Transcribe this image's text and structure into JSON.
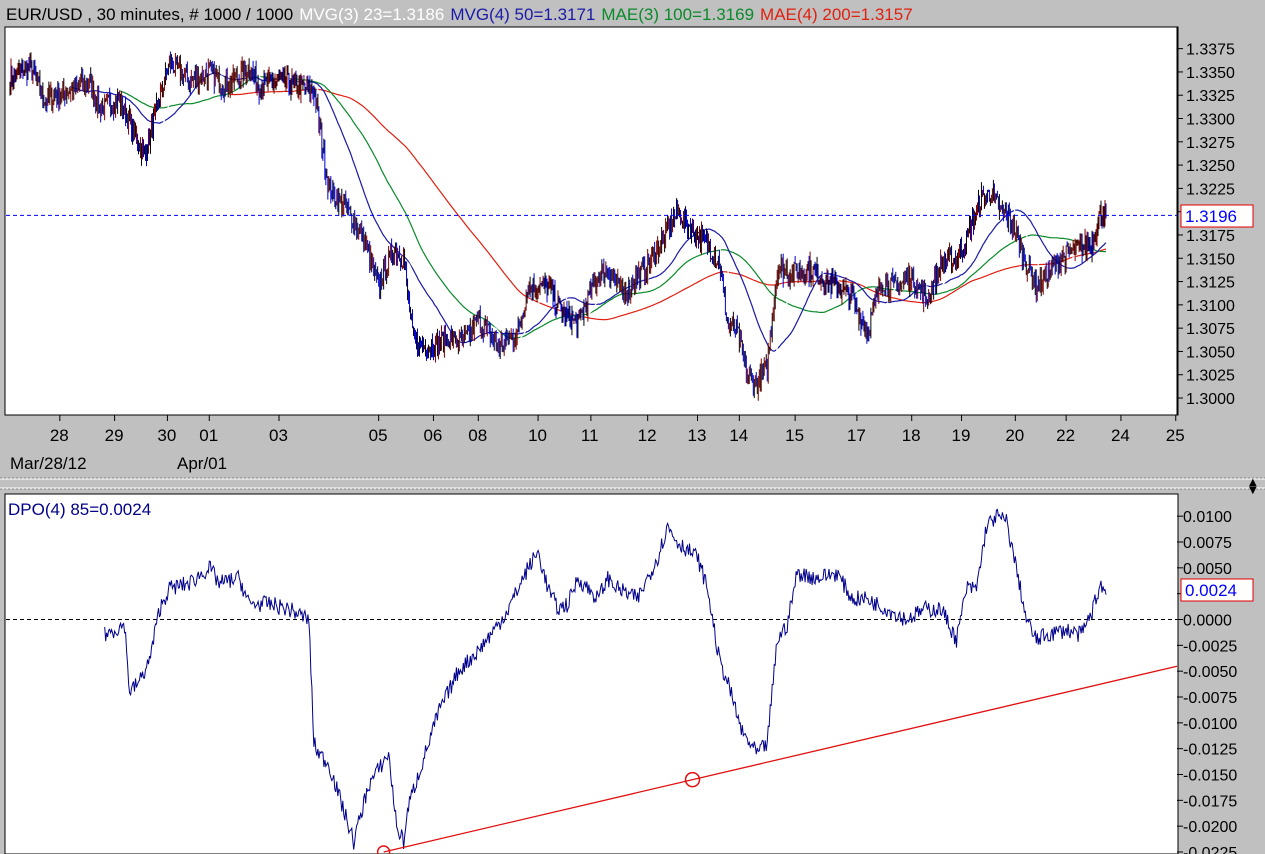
{
  "colors": {
    "background": "#c0c0c0",
    "plot_bg": "#ffffff",
    "candle": "#000000",
    "candle_up": "#7a0000",
    "candle_down": "#0000c8",
    "mvg3": "#ffffff",
    "mvg4": "#1a1aa8",
    "mae3": "#0a8a2a",
    "mae4": "#e02010",
    "dpo": "#00008b",
    "trendline": "#e01010",
    "last_price": "#0000ff"
  },
  "header": {
    "symbol_line": "EUR/USD , 30 minutes, # 1000 / 1000",
    "mvg3": "MVG(3) 23=1.3186",
    "mvg4": "MVG(4) 50=1.3171",
    "mae3": "MAE(3) 100=1.3169",
    "mae4": "MAE(4) 200=1.3157"
  },
  "date_labels": {
    "start": "Mar/28/12",
    "month": "Apr/01"
  },
  "last_price_label": "1.3196",
  "dpo_label": "DPO(4) 85=0.0024",
  "dpo_last_label": "0.0024",
  "chart_data": [
    {
      "type": "candlestick",
      "title": "EUR/USD , 30 minutes, # 1000 / 1000",
      "ylim": [
        1.2985,
        1.3395
      ],
      "yticks": [
        "1.3375",
        "1.3350",
        "1.3325",
        "1.3300",
        "1.3275",
        "1.3250",
        "1.3225",
        "1.3200",
        "1.3175",
        "1.3150",
        "1.3125",
        "1.3100",
        "1.3075",
        "1.3050",
        "1.3025",
        "1.3000"
      ],
      "x_tick_labels": [
        "28",
        "29",
        "30",
        "01",
        "03",
        "05",
        "06",
        "08",
        "10",
        "11",
        "12",
        "13",
        "14",
        "15",
        "17",
        "18",
        "19",
        "20",
        "22",
        "24",
        "25"
      ],
      "x_tick_index": [
        50,
        105,
        158,
        200,
        270,
        370,
        425,
        470,
        530,
        583,
        640,
        690,
        732,
        788,
        850,
        905,
        955,
        1009,
        1060,
        1115,
        1170
      ],
      "reference_line": 1.3196,
      "close_anchors_index": [
        0,
        20,
        35,
        60,
        80,
        90,
        110,
        120,
        135,
        160,
        180,
        200,
        215,
        230,
        240,
        250,
        270,
        290,
        305,
        320,
        340,
        355,
        370,
        385,
        395,
        405,
        420,
        440,
        455,
        470,
        490,
        510,
        520,
        540,
        555,
        570,
        590,
        600,
        615,
        630,
        645,
        660,
        670,
        685,
        700,
        712,
        720,
        730,
        740,
        750,
        760,
        770,
        785,
        800,
        815,
        830,
        845,
        860,
        875,
        890,
        905,
        920,
        935,
        950,
        960,
        975,
        985,
        995,
        1005,
        1020,
        1030,
        1040,
        1055,
        1070,
        1085,
        1095,
        1100
      ],
      "close_anchors": [
        1.3345,
        1.3355,
        1.332,
        1.333,
        1.334,
        1.331,
        1.332,
        1.3295,
        1.326,
        1.336,
        1.334,
        1.335,
        1.3335,
        1.3345,
        1.3355,
        1.3335,
        1.334,
        1.3335,
        1.333,
        1.3225,
        1.32,
        1.317,
        1.312,
        1.316,
        1.315,
        1.306,
        1.3055,
        1.3065,
        1.306,
        1.3085,
        1.3055,
        1.307,
        1.312,
        1.312,
        1.309,
        1.308,
        1.313,
        1.314,
        1.311,
        1.313,
        1.315,
        1.318,
        1.32,
        1.318,
        1.3165,
        1.3145,
        1.308,
        1.307,
        1.3025,
        1.3015,
        1.3035,
        1.314,
        1.3135,
        1.314,
        1.313,
        1.312,
        1.311,
        1.307,
        1.3125,
        1.312,
        1.313,
        1.3105,
        1.3145,
        1.315,
        1.317,
        1.3215,
        1.322,
        1.32,
        1.319,
        1.3145,
        1.312,
        1.313,
        1.315,
        1.316,
        1.3165,
        1.32,
        1.3196
      ],
      "series": [
        {
          "name": "MVG(3) 23=1.3186",
          "kind": "moving_average",
          "period": 23
        },
        {
          "name": "MVG(4) 50=1.3171",
          "kind": "moving_average",
          "period": 50
        },
        {
          "name": "MAE(3) 100=1.3169",
          "kind": "moving_average",
          "period": 100
        },
        {
          "name": "MAE(4) 200=1.3157",
          "kind": "moving_average",
          "period": 200
        }
      ]
    },
    {
      "type": "line",
      "title": "DPO(4) 85=0.0024",
      "ylim": [
        -0.0225,
        0.0105
      ],
      "yticks": [
        "0.0100",
        "0.0075",
        "0.0050",
        "0.0025",
        "0.0000",
        "-0.0025",
        "-0.0050",
        "-0.0075",
        "-0.0100",
        "-0.0125",
        "-0.0150",
        "-0.0175",
        "-0.0200",
        "-0.0225"
      ],
      "reference_line": 0.0,
      "series": [
        {
          "name": "DPO(4) 85=0.0024",
          "start_index": 95,
          "anchors_index": [
            95,
            115,
            120,
            130,
            140,
            150,
            160,
            180,
            200,
            210,
            230,
            240,
            260,
            280,
            300,
            305,
            310,
            320,
            340,
            345,
            360,
            380,
            388,
            395,
            400,
            410,
            430,
            450,
            470,
            490,
            500,
            520,
            530,
            540,
            550,
            560,
            570,
            590,
            600,
            610,
            630,
            650,
            660,
            670,
            690,
            700,
            712,
            720,
            735,
            750,
            760,
            770,
            780,
            790,
            810,
            830,
            845,
            860,
            880,
            900,
            918,
            935,
            950,
            960,
            970,
            980,
            990,
            1000,
            1010,
            1020,
            1030,
            1040,
            1060,
            1075,
            1085,
            1095,
            1100
          ],
          "anchors_values": [
            -0.0015,
            -0.0005,
            -0.007,
            -0.006,
            -0.004,
            0.001,
            0.003,
            0.0035,
            0.005,
            0.0035,
            0.004,
            0.0015,
            0.0015,
            0.001,
            0.0,
            -0.012,
            -0.013,
            -0.014,
            -0.02,
            -0.0215,
            -0.016,
            -0.013,
            -0.02,
            -0.0215,
            -0.018,
            -0.015,
            -0.009,
            -0.005,
            -0.003,
            -0.0005,
            0.001,
            0.005,
            0.0065,
            0.003,
            0.001,
            0.0015,
            0.004,
            0.002,
            0.004,
            0.003,
            0.002,
            0.006,
            0.009,
            0.0075,
            0.006,
            0.003,
            -0.004,
            -0.006,
            -0.011,
            -0.013,
            -0.012,
            -0.002,
            -0.0005,
            0.0045,
            0.004,
            0.0045,
            0.002,
            0.002,
            0.001,
            0.0,
            0.001,
            0.001,
            -0.002,
            0.003,
            0.003,
            0.009,
            0.01,
            0.0095,
            0.005,
            0.0,
            -0.002,
            -0.0015,
            -0.001,
            -0.0015,
            0.0005,
            0.0035,
            0.0024
          ]
        }
      ],
      "trendline": {
        "points": [
          [
            375,
            -0.0225
          ],
          [
            685,
            -0.0155
          ]
        ],
        "extends_right": true
      }
    }
  ]
}
